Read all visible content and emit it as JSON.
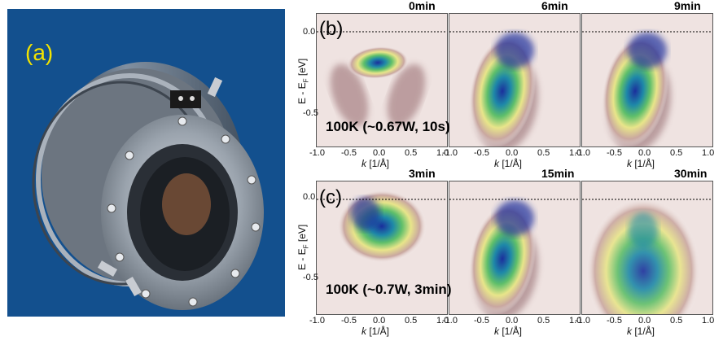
{
  "panel_a": {
    "label": "(a)"
  },
  "panel_b": {
    "label": "(b)",
    "condition": "100K (~0.67W, 10s)",
    "times": [
      "0min",
      "6min",
      "9min"
    ]
  },
  "panel_c": {
    "label": "(c)",
    "condition": "100K (~0.7W, 3min)",
    "times": [
      "3min",
      "15min",
      "30min"
    ]
  },
  "axes": {
    "y_label": "E - E",
    "y_label_sub": "F",
    "y_unit": " [eV]",
    "y_ticks": [
      "0.0",
      "-0.5"
    ],
    "x_label_k": "k",
    "x_label_unit": " [1/Å]",
    "x_ticks": [
      "-1.0",
      "-0.5",
      "0.0",
      "0.5",
      "1.0"
    ]
  },
  "colors": {
    "panel_a_bg": "#13508e",
    "label_a": "#f2e300"
  }
}
